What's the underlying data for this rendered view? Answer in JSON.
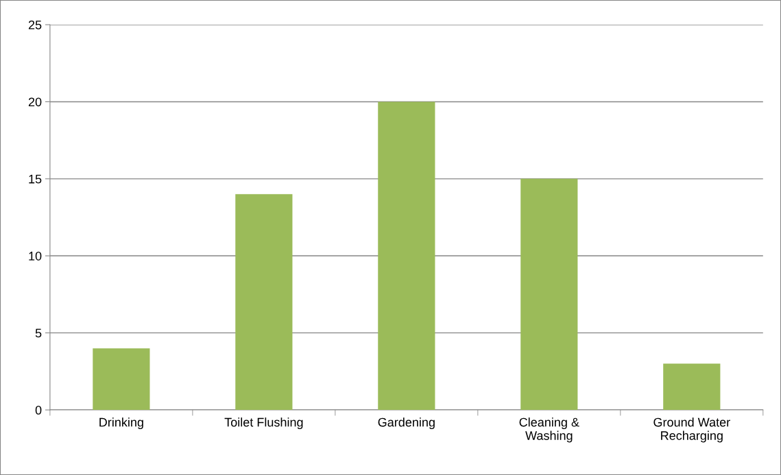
{
  "chart_data": {
    "type": "bar",
    "categories": [
      "Drinking",
      "Toilet Flushing",
      "Gardening",
      "Cleaning &\nWashing",
      "Ground Water\nRecharging"
    ],
    "values": [
      4,
      14,
      20,
      15,
      3
    ],
    "color": "#9bbb59",
    "ylim": [
      0,
      25
    ],
    "yticks": [
      0,
      5,
      10,
      15,
      20,
      25
    ],
    "grid": "y"
  }
}
